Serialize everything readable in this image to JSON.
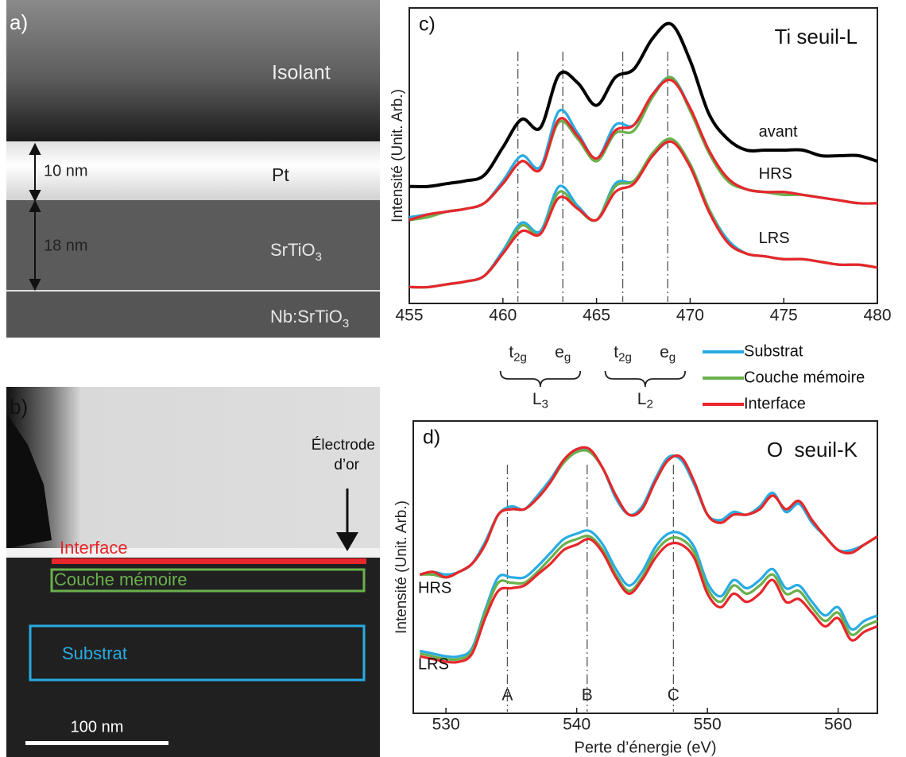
{
  "panel_a": {
    "label": "a)",
    "isolant": "Isolant",
    "pt": "Pt",
    "sto": "SrTiO",
    "sto_sub": "3",
    "nbsto": "Nb:SrTiO",
    "nbsto_sub": "3",
    "pt_thickness": "10 nm",
    "sto_thickness": "18 nm"
  },
  "panel_b": {
    "label": "b)",
    "electrode": [
      "Électrode",
      "d’or"
    ],
    "interface": "Interface",
    "couche": "Couche mémoire",
    "substrat": "Substrat",
    "scale": "100 nm"
  },
  "legend": [
    {
      "name": "Substrat",
      "color": "#29abe2"
    },
    {
      "name": "Couche mémoire",
      "color": "#6ab04c"
    },
    {
      "name": "Interface",
      "color": "#e8262b"
    }
  ],
  "chart_data": [
    {
      "type": "line",
      "label": "c)",
      "title": "Ti seuil-L",
      "ylabel": "Intensité (Unit. Arb.)",
      "x": [
        455,
        456,
        457,
        458,
        459,
        460,
        461,
        462,
        463,
        464,
        465,
        466,
        467,
        468,
        469,
        470,
        471,
        472,
        473,
        474,
        475,
        476,
        477,
        478,
        479,
        480
      ],
      "xlim": [
        455,
        480
      ],
      "xticks": [
        455,
        460,
        465,
        470,
        475,
        480
      ],
      "ylim": [
        0,
        100
      ],
      "groups": [
        {
          "label": "avant",
          "series": [
            {
              "color": "#000000",
              "values": [
                39,
                39,
                40,
                41,
                43,
                53,
                63,
                60,
                79,
                76,
                68,
                78,
                81,
                92,
                97,
                84,
                65,
                56,
                52,
                52,
                52,
                52,
                50,
                50,
                50,
                48
              ]
            }
          ]
        },
        {
          "label": "HRS",
          "series": [
            {
              "color": "#29abe2",
              "values": [
                28,
                29,
                30,
                31,
                33,
                41,
                50,
                46,
                66,
                58,
                49,
                61,
                61,
                72,
                78,
                67,
                52,
                42,
                38,
                37,
                37,
                36,
                35,
                34,
                33,
                33
              ]
            },
            {
              "color": "#6ab04c",
              "values": [
                27,
                28,
                30,
                31,
                33,
                40,
                48,
                45,
                62,
                56,
                48,
                58,
                59,
                71,
                78,
                66,
                51,
                41,
                38,
                37,
                36,
                36,
                35,
                34,
                33,
                33
              ]
            },
            {
              "color": "#e8262b",
              "values": [
                27,
                29,
                30,
                31,
                33,
                40,
                48,
                45,
                63,
                57,
                49,
                59,
                61,
                72,
                77,
                67,
                52,
                42,
                38,
                37,
                37,
                36,
                35,
                34,
                33,
                33
              ]
            }
          ]
        },
        {
          "label": "LRS",
          "series": [
            {
              "color": "#29abe2",
              "values": [
                3,
                3,
                4,
                5,
                7,
                16,
                26,
                23,
                39,
                32,
                27,
                40,
                41,
                50,
                55,
                47,
                31,
                20,
                15,
                14,
                13,
                13,
                12,
                11,
                11,
                10
              ]
            },
            {
              "color": "#6ab04c",
              "values": [
                3,
                3,
                4,
                5,
                7,
                15,
                25,
                22,
                37,
                31,
                27,
                39,
                41,
                51,
                56,
                47,
                31,
                19,
                15,
                14,
                13,
                13,
                12,
                11,
                11,
                10
              ]
            },
            {
              "color": "#e8262b",
              "values": [
                3,
                3,
                4,
                5,
                7,
                15,
                23,
                22,
                35,
                31,
                27,
                37,
                40,
                50,
                55,
                46,
                30,
                19,
                15,
                14,
                13,
                13,
                12,
                11,
                11,
                10
              ]
            }
          ]
        }
      ],
      "edges": [
        {
          "label": "L",
          "sub": "3",
          "markers": [
            {
              "x": 460.8,
              "label": "t",
              "sub": "2g"
            },
            {
              "x": 463.2,
              "label": "e",
              "sub": "g"
            }
          ]
        },
        {
          "label": "L",
          "sub": "2",
          "markers": [
            {
              "x": 466.4,
              "label": "t",
              "sub": "2g"
            },
            {
              "x": 468.8,
              "label": "e",
              "sub": "g"
            }
          ]
        }
      ]
    },
    {
      "type": "line",
      "label": "d)",
      "title": "O  seuil-K",
      "ylabel": "Intensité (Unit. Arb.)",
      "xlabel": "Perte d’énergie (eV)",
      "x": [
        528,
        529,
        530,
        531,
        532,
        533,
        534,
        535,
        536,
        537,
        538,
        539,
        540,
        541,
        542,
        543,
        544,
        545,
        546,
        547,
        548,
        549,
        550,
        551,
        552,
        553,
        554,
        555,
        556,
        557,
        558,
        559,
        560,
        561,
        562,
        563
      ],
      "xlim": [
        527.5,
        563
      ],
      "xticks": [
        530,
        540,
        550,
        560
      ],
      "ylim": [
        0,
        100
      ],
      "groups": [
        {
          "label": "HRS",
          "series": [
            {
              "color": "#29abe2",
              "values": [
                48,
                49,
                48,
                49,
                52,
                60,
                70,
                73,
                72,
                77,
                83,
                90,
                94,
                93,
                87,
                76,
                70,
                73,
                83,
                91,
                90,
                81,
                70,
                68,
                71,
                70,
                73,
                78,
                71,
                74,
                67,
                62,
                57,
                57,
                59,
                62
              ]
            },
            {
              "color": "#6ab04c",
              "values": [
                48,
                48,
                47,
                49,
                52,
                59,
                70,
                72,
                72,
                76,
                82,
                89,
                93,
                93,
                87,
                77,
                70,
                72,
                82,
                90,
                91,
                82,
                70,
                67,
                70,
                70,
                72,
                77,
                72,
                75,
                68,
                62,
                57,
                56,
                59,
                62
              ]
            },
            {
              "color": "#e8262b",
              "values": [
                48,
                49,
                47,
                49,
                52,
                59,
                70,
                72,
                72,
                76,
                82,
                90,
                94,
                94,
                87,
                77,
                70,
                72,
                82,
                90,
                91,
                82,
                70,
                67,
                70,
                70,
                72,
                77,
                72,
                75,
                68,
                62,
                57,
                56,
                59,
                62
              ]
            }
          ]
        },
        {
          "label": "LRS",
          "series": [
            {
              "color": "#29abe2",
              "values": [
                20,
                19,
                18,
                18,
                21,
                35,
                47,
                47,
                47,
                51,
                56,
                61,
                63,
                64,
                59,
                50,
                44,
                49,
                58,
                63,
                63,
                58,
                45,
                40,
                46,
                43,
                46,
                50,
                43,
                44,
                38,
                33,
                36,
                28,
                31,
                33
              ]
            },
            {
              "color": "#6ab04c",
              "values": [
                19,
                18,
                17,
                17,
                20,
                34,
                45,
                45,
                45,
                49,
                54,
                59,
                61,
                62,
                57,
                48,
                42,
                47,
                56,
                61,
                61,
                56,
                43,
                38,
                44,
                41,
                44,
                48,
                41,
                42,
                36,
                31,
                34,
                26,
                29,
                31
              ]
            },
            {
              "color": "#e8262b",
              "values": [
                18,
                17,
                16,
                16,
                19,
                32,
                42,
                43,
                44,
                48,
                52,
                57,
                59,
                61,
                56,
                47,
                41,
                46,
                54,
                59,
                59,
                54,
                41,
                36,
                41,
                38,
                41,
                46,
                38,
                39,
                34,
                29,
                32,
                24,
                27,
                29
              ]
            }
          ]
        }
      ],
      "markers": [
        {
          "x": 534.7,
          "label": "A"
        },
        {
          "x": 540.8,
          "label": "B"
        },
        {
          "x": 547.4,
          "label": "C"
        }
      ]
    }
  ]
}
